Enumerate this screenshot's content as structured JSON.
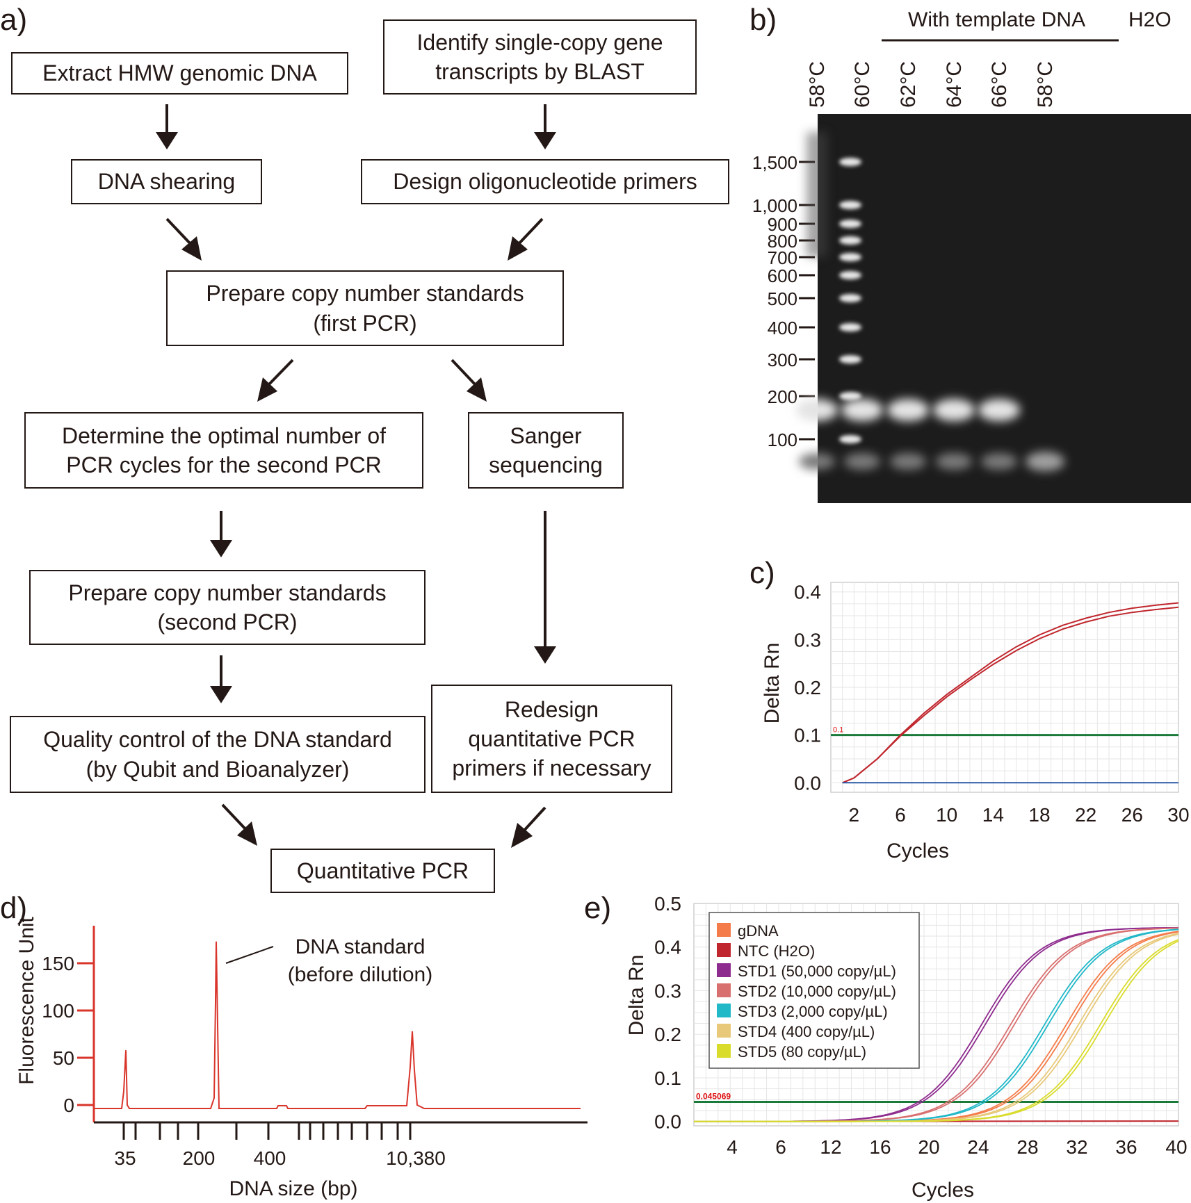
{
  "panels": {
    "a": "a)",
    "b": "b)",
    "c": "c)",
    "d": "d)",
    "e": "e)"
  },
  "flowchart": {
    "extract": "Extract HMW genomic DNA",
    "identify": "Identify single-copy gene\ntranscripts by BLAST",
    "shearing": "DNA shearing",
    "design": "Design oligonucleotide primers",
    "prepare_first": "Prepare copy number standards\n(first PCR)",
    "determine": "Determine the optimal number of\nPCR cycles for the second PCR",
    "sanger": "Sanger\nsequencing",
    "prepare_second": "Prepare copy number standards\n(second PCR)",
    "quality": "Quality control of the DNA standard\n(by Qubit and Bioanalyzer)",
    "redesign": "Redesign\nquantitative PCR\nprimers if necessary",
    "qpcr": "Quantitative PCR"
  },
  "gel": {
    "header": "With template DNA",
    "header_h2o": "H2O",
    "lanes": [
      "58°C",
      "60°C",
      "62°C",
      "64°C",
      "66°C",
      "58°C"
    ],
    "ladder": [
      "1,500",
      "1,000",
      "900",
      "800",
      "700",
      "600",
      "500",
      "400",
      "300",
      "200",
      "100"
    ]
  },
  "chart_data": [
    {
      "panel": "c",
      "type": "line",
      "xlabel": "Cycles",
      "ylabel": "Delta Rn",
      "xlim": [
        0,
        30
      ],
      "ylim": [
        -0.02,
        0.42
      ],
      "xticks": [
        2,
        6,
        10,
        14,
        18,
        22,
        26,
        30
      ],
      "yticks": [
        0.0,
        0.1,
        0.2,
        0.3,
        0.4
      ],
      "threshold": {
        "value": 0.1,
        "label": "0.1",
        "color": "#1a7a3a"
      },
      "series": [
        {
          "color": "#c0262d",
          "points": [
            [
              1,
              0.0
            ],
            [
              2,
              0.01
            ],
            [
              4,
              0.05
            ],
            [
              6,
              0.1
            ],
            [
              8,
              0.145
            ],
            [
              10,
              0.185
            ],
            [
              12,
              0.22
            ],
            [
              14,
              0.255
            ],
            [
              16,
              0.285
            ],
            [
              18,
              0.31
            ],
            [
              20,
              0.33
            ],
            [
              22,
              0.345
            ],
            [
              24,
              0.357
            ],
            [
              26,
              0.366
            ],
            [
              28,
              0.372
            ],
            [
              30,
              0.377
            ]
          ]
        },
        {
          "color": "#c0262d",
          "points": [
            [
              1,
              0.0
            ],
            [
              2,
              0.01
            ],
            [
              4,
              0.05
            ],
            [
              6,
              0.098
            ],
            [
              8,
              0.14
            ],
            [
              10,
              0.18
            ],
            [
              12,
              0.215
            ],
            [
              14,
              0.248
            ],
            [
              16,
              0.277
            ],
            [
              18,
              0.302
            ],
            [
              20,
              0.322
            ],
            [
              22,
              0.337
            ],
            [
              24,
              0.349
            ],
            [
              26,
              0.357
            ],
            [
              28,
              0.363
            ],
            [
              30,
              0.368
            ]
          ]
        },
        {
          "color": "#2a5aa8",
          "points": [
            [
              1,
              0.0
            ],
            [
              30,
              0.0
            ]
          ]
        }
      ]
    },
    {
      "panel": "d",
      "type": "line",
      "xlabel": "DNA size (bp)",
      "ylabel": "Fluorescence Unit",
      "yticks": [
        0,
        50,
        100,
        150
      ],
      "xtick_labels": [
        "35",
        "200",
        "400",
        "10,380"
      ],
      "annotation": "DNA standard\n(before dilution)",
      "series": [
        {
          "color": "#d9352b",
          "peaks": [
            {
              "size": "35",
              "height": 58
            },
            {
              "size": "DNA standard",
              "height": 173
            },
            {
              "size": "10,380",
              "height": 78
            }
          ]
        }
      ]
    },
    {
      "panel": "e",
      "type": "line",
      "xlabel": "Cycles",
      "ylabel": "Delta Rn",
      "xlim": [
        0,
        40
      ],
      "ylim": [
        -0.01,
        0.5
      ],
      "xticks": [
        4,
        6,
        12,
        16,
        20,
        24,
        28,
        32,
        36,
        40
      ],
      "yticks": [
        0.0,
        0.1,
        0.2,
        0.3,
        0.4,
        0.5
      ],
      "threshold": {
        "value": 0.045069,
        "label": "0.045069",
        "color": "#1a7a3a"
      },
      "legend_position": "top-left",
      "series": [
        {
          "name": "gDNA",
          "color": "#f47c4a",
          "ct": 27.0
        },
        {
          "name": "NTC (H2O)",
          "color": "#c0262d",
          "ct": null
        },
        {
          "name": "STD1 (50,000 copy/µL)",
          "color": "#8e2b8e",
          "ct": 20.0
        },
        {
          "name": "STD2 (10,000 copy/µL)",
          "color": "#d97070",
          "ct": 22.4
        },
        {
          "name": "STD3 (2,000 copy/µL)",
          "color": "#21b8c8",
          "ct": 25.2
        },
        {
          "name": "STD4 (400 copy/µL)",
          "color": "#e8c97a",
          "ct": 28.0
        },
        {
          "name": "STD5 (80 copy/µL)",
          "color": "#d9dc2b",
          "ct": 29.8
        }
      ]
    }
  ]
}
